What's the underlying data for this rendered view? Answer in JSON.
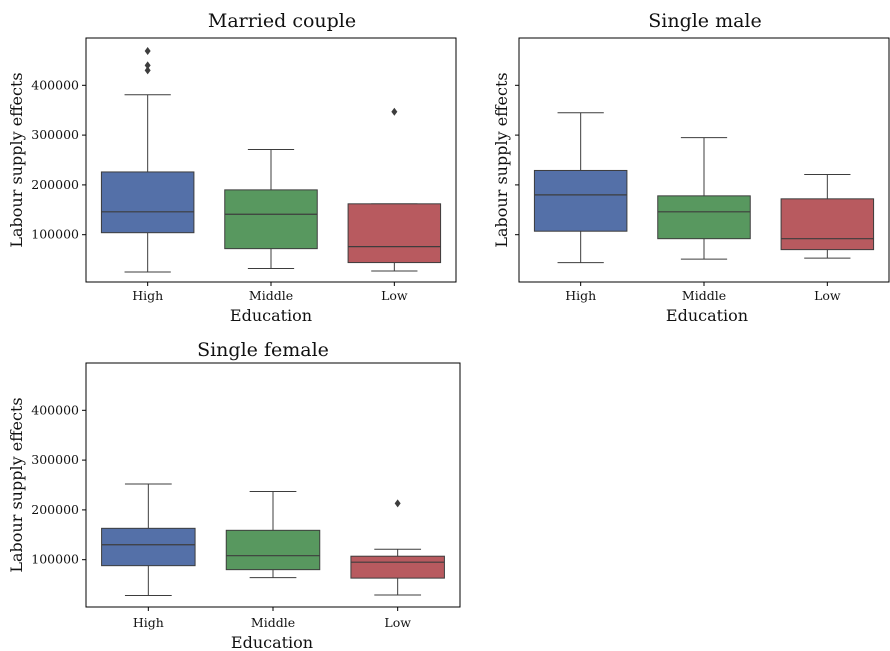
{
  "colors": {
    "High": "#5470a8",
    "Middle": "#58985f",
    "Low": "#b85a5f"
  },
  "chart_data": [
    {
      "type": "box",
      "title": "Married couple",
      "xlabel": "Education",
      "ylabel": "Labour supply effects",
      "categories": [
        "High",
        "Middle",
        "Low"
      ],
      "yticks": [
        100000,
        200000,
        300000,
        400000
      ],
      "ytick_labels": [
        "100000",
        "200000",
        "300000",
        "400000"
      ],
      "ylim": [
        5000,
        495000
      ],
      "boxes": [
        {
          "category": "High",
          "whislo": 25000,
          "q1": 104000,
          "med": 146000,
          "q3": 226000,
          "whishi": 381000,
          "fliers": [
            430000,
            440000,
            469000
          ]
        },
        {
          "category": "Middle",
          "whislo": 32000,
          "q1": 72000,
          "med": 141000,
          "q3": 190000,
          "whishi": 271000,
          "fliers": []
        },
        {
          "category": "Low",
          "whislo": 27000,
          "q1": 44000,
          "med": 76000,
          "q3": 162000,
          "whishi": 162000,
          "fliers": [
            347000
          ]
        }
      ]
    },
    {
      "type": "box",
      "title": "Single male",
      "xlabel": "Education",
      "ylabel": "Labour supply effects",
      "categories": [
        "High",
        "Middle",
        "Low"
      ],
      "yticks": [
        100000,
        200000,
        300000,
        400000
      ],
      "ytick_labels": [
        "",
        "",
        "",
        ""
      ],
      "ylim": [
        5000,
        495000
      ],
      "boxes": [
        {
          "category": "High",
          "whislo": 44000,
          "q1": 107000,
          "med": 180000,
          "q3": 229000,
          "whishi": 345000,
          "fliers": []
        },
        {
          "category": "Middle",
          "whislo": 51000,
          "q1": 92000,
          "med": 146000,
          "q3": 178000,
          "whishi": 295000,
          "fliers": []
        },
        {
          "category": "Low",
          "whislo": 53000,
          "q1": 70000,
          "med": 92000,
          "q3": 172000,
          "whishi": 221000,
          "fliers": []
        }
      ]
    },
    {
      "type": "box",
      "title": "Single female",
      "xlabel": "Education",
      "ylabel": "Labour supply effects",
      "categories": [
        "High",
        "Middle",
        "Low"
      ],
      "yticks": [
        100000,
        200000,
        300000,
        400000
      ],
      "ytick_labels": [
        "100000",
        "200000",
        "300000",
        "400000"
      ],
      "ylim": [
        5000,
        495000
      ],
      "boxes": [
        {
          "category": "High",
          "whislo": 28000,
          "q1": 88000,
          "med": 130000,
          "q3": 163000,
          "whishi": 252000,
          "fliers": []
        },
        {
          "category": "Middle",
          "whislo": 64000,
          "q1": 80000,
          "med": 108000,
          "q3": 159000,
          "whishi": 237000,
          "fliers": []
        },
        {
          "category": "Low",
          "whislo": 29000,
          "q1": 63000,
          "med": 95000,
          "q3": 107000,
          "whishi": 121000,
          "fliers": [
            213000
          ]
        }
      ]
    }
  ]
}
